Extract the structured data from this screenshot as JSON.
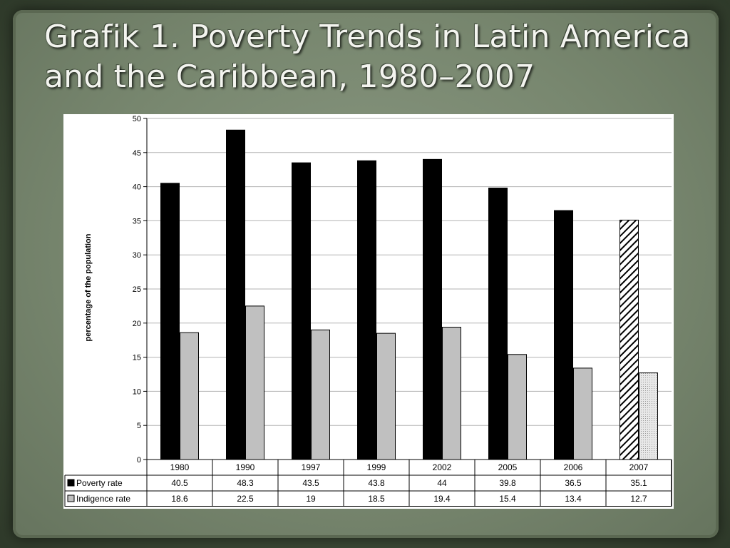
{
  "slide": {
    "title_line1": "Grafik 1. Poverty Trends in Latin America",
    "title_line2": "and the Caribbean, 1980–2007"
  },
  "colors": {
    "poverty": "#000000",
    "indigence": "#c0c0c0",
    "poverty_projected": "hatched",
    "indigence_projected": "#e4e4e4"
  },
  "chart_data": {
    "type": "bar",
    "title": "",
    "xlabel": "",
    "ylabel": "percentage of the population",
    "ylim": [
      0,
      50
    ],
    "yticks": [
      0,
      5,
      10,
      15,
      20,
      25,
      30,
      35,
      40,
      45,
      50
    ],
    "grid": true,
    "legend_placement": "table below chart",
    "categories": [
      "1980",
      "1990",
      "1997",
      "1999",
      "2002",
      "2005",
      "2006",
      "2007"
    ],
    "series": [
      {
        "name": "Poverty rate",
        "values": [
          40.5,
          48.3,
          43.5,
          43.8,
          44,
          39.8,
          36.5,
          35.1
        ],
        "display": [
          "40.5",
          "48.3",
          "43.5",
          "43.8",
          "44",
          "39.8",
          "36.5",
          "35.1"
        ]
      },
      {
        "name": "Indigence rate",
        "values": [
          18.6,
          22.5,
          19,
          18.5,
          19.4,
          15.4,
          13.4,
          12.7
        ],
        "display": [
          "18.6",
          "22.5",
          "19",
          "18.5",
          "19.4",
          "15.4",
          "13.4",
          "12.7"
        ]
      }
    ]
  }
}
